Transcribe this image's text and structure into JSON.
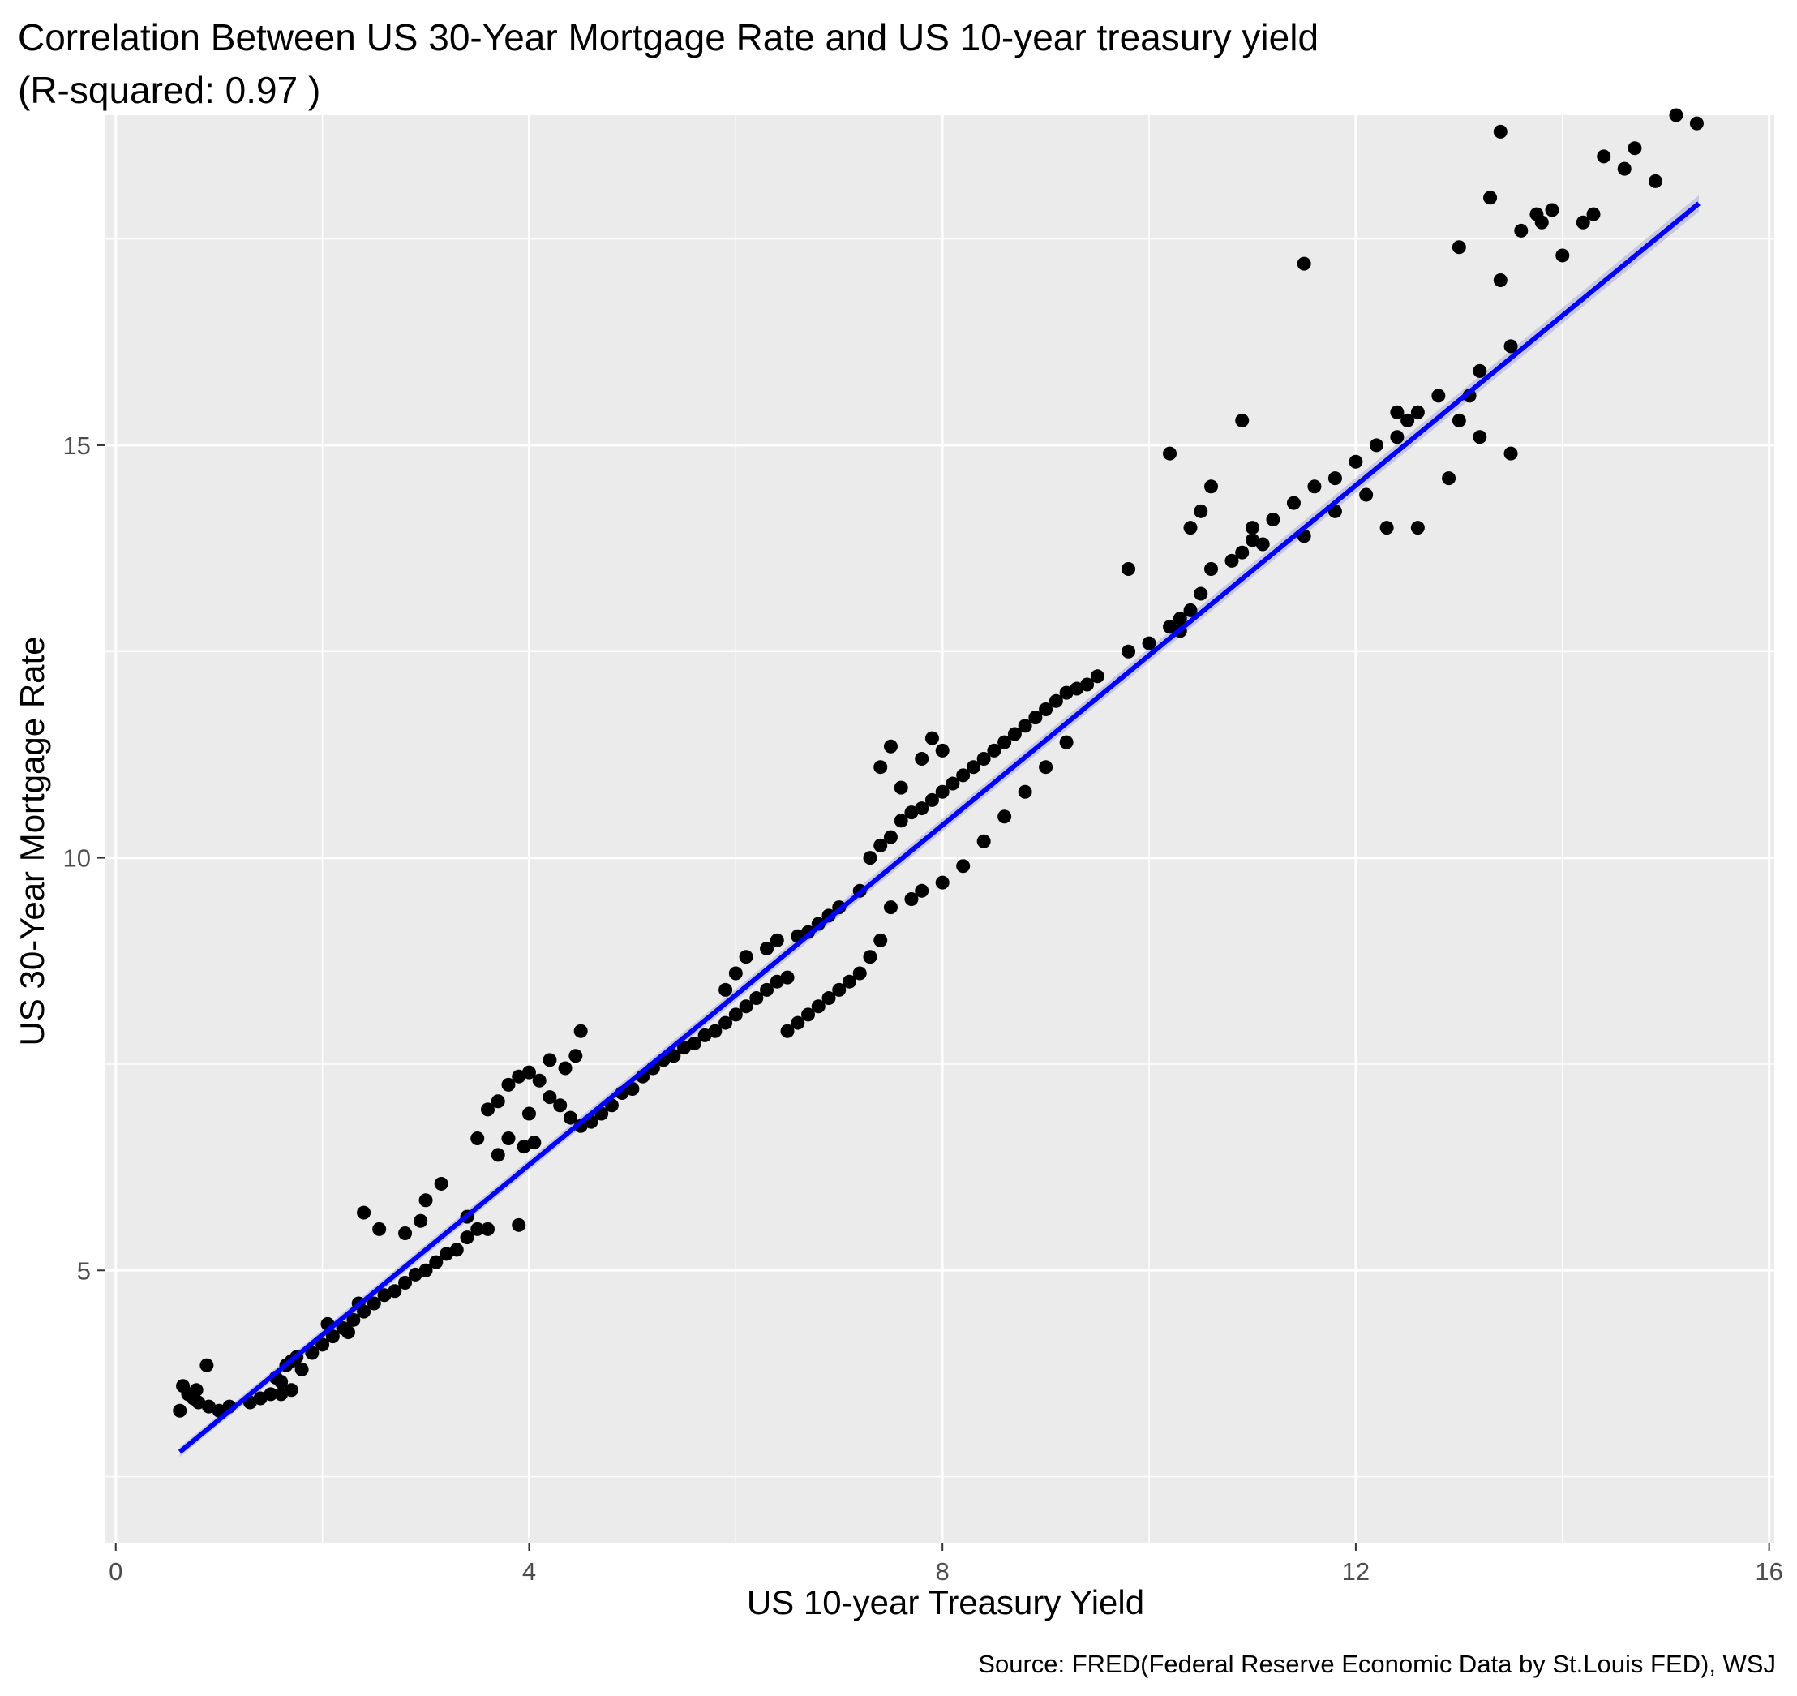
{
  "chart_data": {
    "type": "scatter",
    "title": "Correlation Between US 30-Year Mortgage Rate and US 10-year treasury yield",
    "subtitle": "(R-squared: 0.97 )",
    "xlabel": "US 10-year Treasury Yield",
    "ylabel": "US 30-Year Mortgage Rate",
    "caption": "Source: FRED(Federal Reserve Economic Data by St.Louis FED), WSJ",
    "xlim": [
      -0.1,
      16.05
    ],
    "ylim": [
      1.7,
      19.0
    ],
    "x_ticks": [
      0,
      4,
      8,
      12,
      16
    ],
    "y_ticks": [
      5,
      10,
      15
    ],
    "grid": true,
    "colors": {
      "panel": "#EBEBEB",
      "grid": "#FFFFFF",
      "points": "#000000",
      "fit_line": "#0000FF",
      "fit_band": "#BEBEDE"
    },
    "fit_line": {
      "x": [
        0.62,
        15.32
      ],
      "y": [
        2.8,
        17.93
      ]
    },
    "series": [
      {
        "points": [
          [
            0.62,
            3.3
          ],
          [
            0.65,
            3.6
          ],
          [
            0.7,
            3.5
          ],
          [
            0.75,
            3.45
          ],
          [
            0.78,
            3.55
          ],
          [
            0.8,
            3.4
          ],
          [
            0.9,
            3.35
          ],
          [
            0.88,
            3.85
          ],
          [
            1.0,
            3.3
          ],
          [
            1.1,
            3.35
          ],
          [
            1.3,
            3.4
          ],
          [
            1.4,
            3.45
          ],
          [
            1.5,
            3.5
          ],
          [
            1.55,
            3.7
          ],
          [
            1.6,
            3.65
          ],
          [
            1.65,
            3.85
          ],
          [
            1.7,
            3.9
          ],
          [
            1.75,
            3.95
          ],
          [
            1.6,
            3.5
          ],
          [
            1.7,
            3.55
          ],
          [
            1.8,
            3.8
          ],
          [
            1.9,
            4.0
          ],
          [
            2.0,
            4.1
          ],
          [
            2.1,
            4.2
          ],
          [
            2.05,
            4.35
          ],
          [
            2.2,
            4.3
          ],
          [
            2.25,
            4.25
          ],
          [
            2.3,
            4.4
          ],
          [
            2.4,
            4.5
          ],
          [
            2.35,
            4.6
          ],
          [
            2.5,
            4.6
          ],
          [
            2.6,
            4.7
          ],
          [
            2.7,
            4.75
          ],
          [
            2.8,
            4.85
          ],
          [
            2.9,
            4.95
          ],
          [
            3.0,
            5.0
          ],
          [
            3.1,
            5.1
          ],
          [
            3.2,
            5.2
          ],
          [
            3.3,
            5.25
          ],
          [
            3.4,
            5.4
          ],
          [
            3.5,
            5.5
          ],
          [
            2.4,
            5.7
          ],
          [
            2.55,
            5.5
          ],
          [
            2.8,
            5.45
          ],
          [
            2.95,
            5.6
          ],
          [
            3.0,
            5.85
          ],
          [
            3.15,
            6.05
          ],
          [
            3.4,
            5.65
          ],
          [
            3.6,
            5.5
          ],
          [
            3.9,
            5.55
          ],
          [
            3.5,
            6.6
          ],
          [
            3.6,
            6.95
          ],
          [
            3.7,
            7.05
          ],
          [
            3.8,
            7.25
          ],
          [
            3.9,
            7.35
          ],
          [
            4.0,
            7.4
          ],
          [
            4.1,
            7.3
          ],
          [
            4.2,
            7.1
          ],
          [
            4.3,
            7.0
          ],
          [
            4.4,
            6.85
          ],
          [
            4.5,
            6.75
          ],
          [
            3.7,
            6.4
          ],
          [
            3.8,
            6.6
          ],
          [
            3.95,
            6.5
          ],
          [
            4.05,
            6.55
          ],
          [
            4.0,
            6.9
          ],
          [
            4.2,
            7.55
          ],
          [
            4.35,
            7.45
          ],
          [
            4.45,
            7.6
          ],
          [
            4.5,
            7.9
          ],
          [
            4.6,
            6.8
          ],
          [
            4.7,
            6.9
          ],
          [
            4.8,
            7.0
          ],
          [
            4.9,
            7.15
          ],
          [
            5.0,
            7.2
          ],
          [
            5.1,
            7.35
          ],
          [
            5.2,
            7.45
          ],
          [
            5.3,
            7.55
          ],
          [
            5.4,
            7.6
          ],
          [
            5.5,
            7.7
          ],
          [
            5.6,
            7.75
          ],
          [
            5.7,
            7.85
          ],
          [
            5.8,
            7.9
          ],
          [
            5.9,
            8.0
          ],
          [
            6.0,
            8.1
          ],
          [
            6.1,
            8.2
          ],
          [
            6.2,
            8.3
          ],
          [
            6.3,
            8.4
          ],
          [
            6.4,
            8.5
          ],
          [
            6.5,
            8.55
          ],
          [
            5.9,
            8.4
          ],
          [
            6.0,
            8.6
          ],
          [
            6.1,
            8.8
          ],
          [
            6.3,
            8.9
          ],
          [
            6.4,
            9.0
          ],
          [
            6.6,
            9.05
          ],
          [
            6.7,
            9.1
          ],
          [
            6.8,
            9.2
          ],
          [
            6.9,
            9.3
          ],
          [
            7.0,
            9.4
          ],
          [
            6.5,
            7.9
          ],
          [
            6.6,
            8.0
          ],
          [
            6.7,
            8.1
          ],
          [
            6.8,
            8.2
          ],
          [
            6.9,
            8.3
          ],
          [
            7.0,
            8.4
          ],
          [
            7.1,
            8.5
          ],
          [
            7.2,
            8.6
          ],
          [
            7.3,
            8.8
          ],
          [
            7.4,
            9.0
          ],
          [
            7.2,
            9.6
          ],
          [
            7.3,
            10.0
          ],
          [
            7.4,
            10.15
          ],
          [
            7.5,
            10.25
          ],
          [
            7.6,
            10.45
          ],
          [
            7.7,
            10.55
          ],
          [
            7.8,
            10.6
          ],
          [
            7.9,
            10.7
          ],
          [
            8.0,
            10.8
          ],
          [
            8.1,
            10.9
          ],
          [
            8.2,
            11.0
          ],
          [
            8.3,
            11.1
          ],
          [
            8.4,
            11.2
          ],
          [
            8.5,
            11.3
          ],
          [
            8.6,
            11.4
          ],
          [
            8.7,
            11.5
          ],
          [
            8.8,
            11.6
          ],
          [
            8.9,
            11.7
          ],
          [
            9.0,
            11.8
          ],
          [
            9.1,
            11.9
          ],
          [
            9.2,
            12.0
          ],
          [
            9.3,
            12.05
          ],
          [
            9.4,
            12.1
          ],
          [
            9.5,
            12.2
          ],
          [
            7.5,
            9.4
          ],
          [
            7.7,
            9.5
          ],
          [
            7.8,
            9.6
          ],
          [
            8.0,
            9.7
          ],
          [
            8.2,
            9.9
          ],
          [
            8.4,
            10.2
          ],
          [
            8.6,
            10.5
          ],
          [
            8.8,
            10.8
          ],
          [
            9.0,
            11.1
          ],
          [
            9.2,
            11.4
          ],
          [
            7.4,
            11.1
          ],
          [
            7.8,
            11.2
          ],
          [
            8.0,
            11.3
          ],
          [
            7.9,
            11.45
          ],
          [
            7.5,
            11.35
          ],
          [
            7.6,
            10.85
          ],
          [
            9.8,
            12.5
          ],
          [
            10.0,
            12.6
          ],
          [
            10.2,
            12.8
          ],
          [
            10.3,
            12.75
          ],
          [
            10.4,
            13.0
          ],
          [
            10.5,
            13.2
          ],
          [
            10.6,
            13.5
          ],
          [
            10.8,
            13.6
          ],
          [
            10.9,
            13.7
          ],
          [
            11.0,
            13.85
          ],
          [
            11.2,
            14.1
          ],
          [
            11.4,
            14.3
          ],
          [
            11.6,
            14.5
          ],
          [
            11.8,
            14.6
          ],
          [
            12.0,
            14.8
          ],
          [
            12.2,
            15.0
          ],
          [
            12.4,
            15.1
          ],
          [
            12.5,
            15.3
          ],
          [
            12.6,
            15.4
          ],
          [
            12.8,
            15.6
          ],
          [
            9.8,
            13.5
          ],
          [
            10.2,
            14.9
          ],
          [
            10.4,
            14.0
          ],
          [
            10.5,
            14.2
          ],
          [
            10.6,
            14.5
          ],
          [
            11.0,
            14.0
          ],
          [
            11.1,
            13.8
          ],
          [
            10.3,
            12.9
          ],
          [
            10.9,
            15.3
          ],
          [
            11.5,
            13.9
          ],
          [
            12.3,
            14.0
          ],
          [
            12.6,
            14.0
          ],
          [
            12.9,
            14.6
          ],
          [
            13.0,
            15.3
          ],
          [
            13.1,
            15.6
          ],
          [
            13.2,
            15.9
          ],
          [
            13.5,
            16.2
          ],
          [
            13.4,
            17.0
          ],
          [
            13.0,
            17.4
          ],
          [
            13.3,
            18.0
          ],
          [
            13.6,
            17.6
          ],
          [
            13.8,
            17.7
          ],
          [
            14.0,
            17.3
          ],
          [
            14.2,
            17.7
          ],
          [
            14.4,
            18.5
          ],
          [
            14.7,
            18.6
          ],
          [
            14.9,
            18.2
          ],
          [
            15.1,
            19.0
          ],
          [
            15.3,
            18.9
          ],
          [
            13.4,
            18.8
          ],
          [
            11.5,
            17.2
          ],
          [
            11.8,
            14.2
          ],
          [
            12.1,
            14.4
          ],
          [
            13.5,
            14.9
          ],
          [
            13.2,
            15.1
          ],
          [
            14.3,
            17.8
          ],
          [
            13.75,
            17.8
          ],
          [
            13.9,
            17.85
          ],
          [
            14.6,
            18.35
          ],
          [
            12.4,
            15.4
          ]
        ]
      }
    ]
  }
}
